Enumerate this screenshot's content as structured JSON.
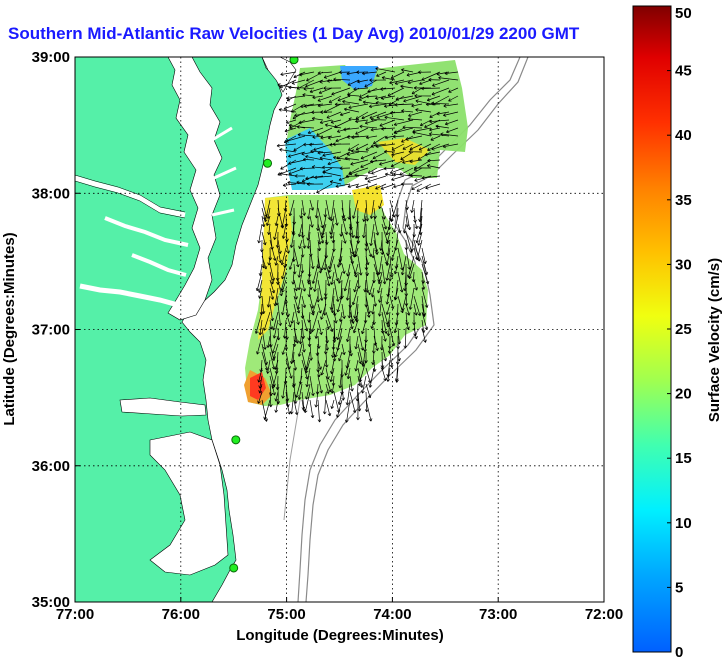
{
  "title": "Southern Mid-Atlantic Raw Velocities (1 Day Avg) 2010/01/29 2200 GMT",
  "map": {
    "xlabel": "Longitude (Degrees:Minutes)",
    "ylabel": "Latitude (Degrees:Minutes)",
    "lon_range": [
      -77,
      -72
    ],
    "lat_range": [
      35,
      39
    ],
    "x_ticks": [
      "77:00",
      "76:00",
      "75:00",
      "74:00",
      "73:00",
      "72:00"
    ],
    "y_ticks": [
      "39:00",
      "38:00",
      "37:00",
      "36:00",
      "35:00"
    ],
    "land_color": "#55f0a8",
    "grid": "dotted",
    "stations": [
      {
        "lon": -74.93,
        "lat": 38.98
      },
      {
        "lon": -75.18,
        "lat": 38.22
      },
      {
        "lon": -75.48,
        "lat": 36.19
      },
      {
        "lon": -75.5,
        "lat": 35.25
      }
    ]
  },
  "colorbar": {
    "label": "Surface Velocity (cm/s)",
    "min": 0,
    "max": 50,
    "ticks": [
      "0",
      "5",
      "10",
      "15",
      "20",
      "25",
      "30",
      "35",
      "40",
      "45",
      "50"
    ]
  }
}
